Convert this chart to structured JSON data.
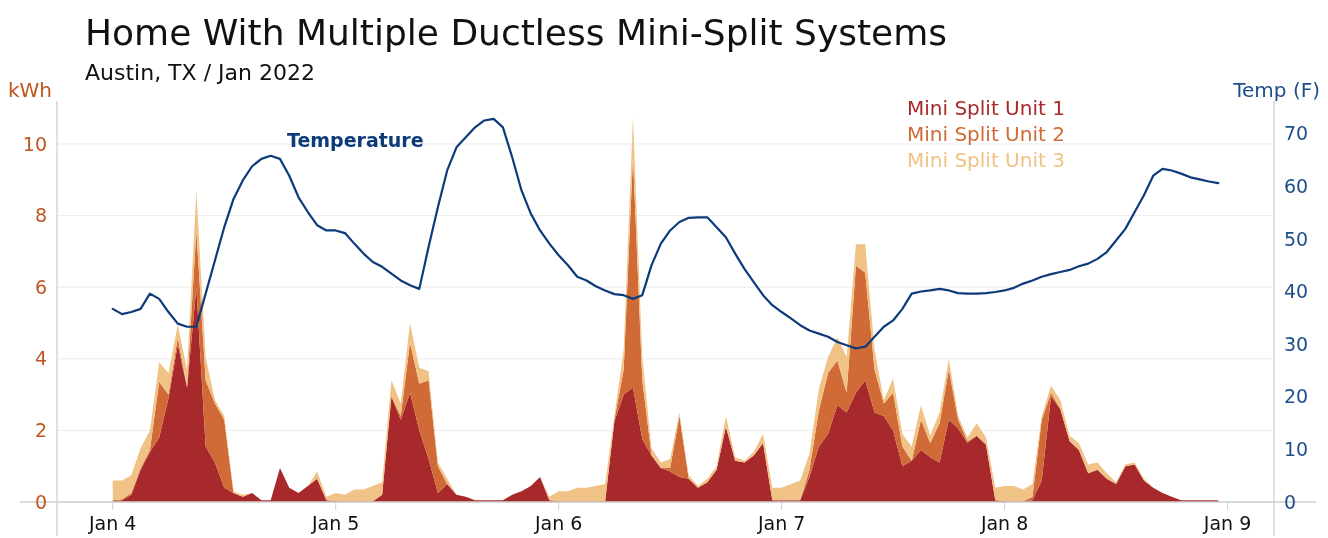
{
  "chart_data": {
    "type": "area",
    "stacked": true,
    "title": "Home With Multiple Ductless Mini-Split Systems",
    "subtitle": "Austin, TX / Jan 2022",
    "ylabel": "kWh",
    "y2label": "Temp (F)",
    "x": [
      "2022-01-04T00:00",
      "2022-01-04T01:00",
      "2022-01-04T02:00",
      "2022-01-04T03:00",
      "2022-01-04T04:00",
      "2022-01-04T05:00",
      "2022-01-04T06:00",
      "2022-01-04T07:00",
      "2022-01-04T08:00",
      "2022-01-04T09:00",
      "2022-01-04T10:00",
      "2022-01-04T11:00",
      "2022-01-04T12:00",
      "2022-01-04T13:00",
      "2022-01-04T14:00",
      "2022-01-04T15:00",
      "2022-01-04T16:00",
      "2022-01-04T17:00",
      "2022-01-04T18:00",
      "2022-01-04T19:00",
      "2022-01-04T20:00",
      "2022-01-04T21:00",
      "2022-01-04T22:00",
      "2022-01-04T23:00",
      "2022-01-05T00:00",
      "2022-01-05T01:00",
      "2022-01-05T02:00",
      "2022-01-05T03:00",
      "2022-01-05T04:00",
      "2022-01-05T05:00",
      "2022-01-05T06:00",
      "2022-01-05T07:00",
      "2022-01-05T08:00",
      "2022-01-05T09:00",
      "2022-01-05T10:00",
      "2022-01-05T11:00",
      "2022-01-05T12:00",
      "2022-01-05T13:00",
      "2022-01-05T14:00",
      "2022-01-05T15:00",
      "2022-01-05T16:00",
      "2022-01-05T17:00",
      "2022-01-05T18:00",
      "2022-01-05T19:00",
      "2022-01-05T20:00",
      "2022-01-05T21:00",
      "2022-01-05T22:00",
      "2022-01-05T23:00",
      "2022-01-06T00:00",
      "2022-01-06T01:00",
      "2022-01-06T02:00",
      "2022-01-06T03:00",
      "2022-01-06T04:00",
      "2022-01-06T05:00",
      "2022-01-06T06:00",
      "2022-01-06T07:00",
      "2022-01-06T08:00",
      "2022-01-06T09:00",
      "2022-01-06T10:00",
      "2022-01-06T11:00",
      "2022-01-06T12:00",
      "2022-01-06T13:00",
      "2022-01-06T14:00",
      "2022-01-06T15:00",
      "2022-01-06T16:00",
      "2022-01-06T17:00",
      "2022-01-06T18:00",
      "2022-01-06T19:00",
      "2022-01-06T20:00",
      "2022-01-06T21:00",
      "2022-01-06T22:00",
      "2022-01-06T23:00",
      "2022-01-07T00:00",
      "2022-01-07T01:00",
      "2022-01-07T02:00",
      "2022-01-07T03:00",
      "2022-01-07T04:00",
      "2022-01-07T05:00",
      "2022-01-07T06:00",
      "2022-01-07T07:00",
      "2022-01-07T08:00",
      "2022-01-07T09:00",
      "2022-01-07T10:00",
      "2022-01-07T11:00",
      "2022-01-07T12:00",
      "2022-01-07T13:00",
      "2022-01-07T14:00",
      "2022-01-07T15:00",
      "2022-01-07T16:00",
      "2022-01-07T17:00",
      "2022-01-07T18:00",
      "2022-01-07T19:00",
      "2022-01-07T20:00",
      "2022-01-07T21:00",
      "2022-01-07T22:00",
      "2022-01-07T23:00",
      "2022-01-08T00:00",
      "2022-01-08T01:00",
      "2022-01-08T02:00",
      "2022-01-08T03:00",
      "2022-01-08T04:00",
      "2022-01-08T05:00",
      "2022-01-08T06:00",
      "2022-01-08T07:00",
      "2022-01-08T08:00",
      "2022-01-08T09:00",
      "2022-01-08T10:00",
      "2022-01-08T11:00",
      "2022-01-08T12:00",
      "2022-01-08T13:00",
      "2022-01-08T14:00",
      "2022-01-08T15:00",
      "2022-01-08T16:00",
      "2022-01-08T17:00",
      "2022-01-08T18:00",
      "2022-01-08T19:00",
      "2022-01-08T20:00",
      "2022-01-08T21:00",
      "2022-01-08T22:00",
      "2022-01-08T23:00"
    ],
    "series": [
      {
        "name": "Mini Split Unit 1",
        "color": "#a8292b",
        "values": [
          0.02,
          0.05,
          0.2,
          0.9,
          1.4,
          1.8,
          2.9,
          4.4,
          3.2,
          6.0,
          1.55,
          1.1,
          0.4,
          0.25,
          0.15,
          0.25,
          0.05,
          0.05,
          0.95,
          0.4,
          0.25,
          0.45,
          0.65,
          0.05,
          0.02,
          0.02,
          0.02,
          0.02,
          0.02,
          0.2,
          2.95,
          2.3,
          3.05,
          2.0,
          1.2,
          0.25,
          0.5,
          0.2,
          0.15,
          0.05,
          0.05,
          0.05,
          0.05,
          0.2,
          0.3,
          0.45,
          0.7,
          0.05,
          0.02,
          0.02,
          0.02,
          0.02,
          0.02,
          0.02,
          2.25,
          3.0,
          3.2,
          1.75,
          1.3,
          0.95,
          0.85,
          0.7,
          0.65,
          0.4,
          0.55,
          0.9,
          2.1,
          1.15,
          1.1,
          1.3,
          1.65,
          0.05,
          0.05,
          0.05,
          0.05,
          0.7,
          1.55,
          1.9,
          2.7,
          2.5,
          3.05,
          3.4,
          2.5,
          2.4,
          2.0,
          1.0,
          1.15,
          1.45,
          1.25,
          1.1,
          2.3,
          2.05,
          1.65,
          1.85,
          1.6,
          0.05,
          0.02,
          0.02,
          0.02,
          0.05,
          0.6,
          2.95,
          2.6,
          1.7,
          1.45,
          0.8,
          0.9,
          0.65,
          0.5,
          1.0,
          1.05,
          0.6,
          0.4,
          0.25,
          0.15,
          0.05,
          0.05,
          0.05,
          0.05,
          0.05
        ]
      },
      {
        "name": "Mini Split Unit 2",
        "color": "#d06a36",
        "values": [
          0.03,
          0.03,
          0.05,
          0.05,
          0.05,
          1.55,
          0.1,
          0.2,
          0,
          1.6,
          1.85,
          1.65,
          1.9,
          0,
          0,
          0,
          0,
          0,
          0,
          0,
          0,
          0,
          0,
          0,
          0,
          0,
          0,
          0,
          0,
          0,
          0,
          0.1,
          1.4,
          1.3,
          2.2,
          0.75,
          0,
          0,
          0,
          0,
          0,
          0,
          0,
          0,
          0,
          0,
          0,
          0,
          0,
          0,
          0,
          0,
          0,
          0,
          0.05,
          0.7,
          6.45,
          1.65,
          0,
          0,
          0.1,
          1.7,
          0,
          0,
          0,
          0,
          0,
          0,
          0,
          0,
          0,
          0,
          0,
          0,
          0,
          0.2,
          1.0,
          1.7,
          1.25,
          0.55,
          3.55,
          3.0,
          1.2,
          0.35,
          1.05,
          0.55,
          0,
          0.85,
          0.4,
          1.1,
          1.4,
          0.25,
          0.05,
          0,
          0,
          0,
          0,
          0,
          0,
          0.1,
          1.7,
          0.1,
          0,
          0,
          0,
          0,
          0,
          0,
          0,
          0,
          0,
          0,
          0,
          0,
          0,
          0,
          0,
          0,
          0,
          0
        ]
      },
      {
        "name": "Mini Split Unit 3",
        "color": "#f0c285",
        "values": [
          0.55,
          0.52,
          0.5,
          0.55,
          0.55,
          0.55,
          0.6,
          0.35,
          0.5,
          1.1,
          0.65,
          0.1,
          0.1,
          0.05,
          0.05,
          0,
          0,
          0,
          0,
          0,
          0,
          0,
          0.2,
          0.1,
          0.23,
          0.18,
          0.33,
          0.33,
          0.43,
          0.35,
          0.45,
          0.35,
          0.55,
          0.45,
          0.25,
          0.1,
          0.15,
          0,
          0,
          0,
          0,
          0,
          0,
          0,
          0,
          0,
          0,
          0.1,
          0.28,
          0.28,
          0.38,
          0.38,
          0.43,
          0.48,
          0.1,
          0.55,
          1.1,
          0.65,
          0.2,
          0.15,
          0.25,
          0.1,
          0.1,
          0.05,
          0.1,
          0.1,
          0.3,
          0.1,
          0.05,
          0.1,
          0.25,
          0.35,
          0.35,
          0.45,
          0.55,
          0.45,
          0.6,
          0.45,
          0.65,
          1.0,
          0.6,
          0.8,
          0.55,
          0.1,
          0.4,
          0.35,
          0.4,
          0.4,
          0.2,
          0.3,
          0.3,
          0.1,
          0.1,
          0.35,
          0.2,
          0.35,
          0.43,
          0.43,
          0.33,
          0.35,
          0.1,
          0.2,
          0.25,
          0.15,
          0.2,
          0.25,
          0.2,
          0.15,
          0.05,
          0.05,
          0.05,
          0.05,
          0,
          0,
          0,
          0,
          0,
          0,
          0,
          0
        ]
      },
      {
        "name": "Temperature",
        "type": "line",
        "axis": "y2",
        "color": "#0d3b7a",
        "values": [
          36.7,
          35.7,
          36.1,
          36.7,
          39.6,
          38.6,
          36.1,
          33.9,
          33.3,
          33.3,
          39.6,
          45.9,
          52.2,
          57.6,
          61.1,
          63.8,
          65.2,
          65.8,
          65.2,
          62.0,
          57.9,
          55.1,
          52.6,
          51.6,
          51.6,
          51.1,
          49.1,
          47.2,
          45.6,
          44.7,
          43.4,
          42.1,
          41.2,
          40.5,
          48.5,
          56.0,
          63.0,
          67.4,
          69.3,
          71.2,
          72.5,
          72.8,
          71.2,
          65.5,
          59.2,
          54.8,
          51.6,
          49.1,
          46.9,
          45.0,
          42.8,
          42.1,
          41.0,
          40.2,
          39.5,
          39.3,
          38.6,
          39.3,
          45.0,
          49.1,
          51.6,
          53.2,
          54.0,
          54.1,
          54.1,
          52.2,
          50.3,
          47.2,
          44.3,
          41.8,
          39.3,
          37.4,
          36.1,
          34.9,
          33.6,
          32.6,
          32.0,
          31.4,
          30.4,
          29.8,
          29.2,
          29.5,
          31.4,
          33.3,
          34.5,
          36.7,
          39.6,
          40.0,
          40.2,
          40.5,
          40.2,
          39.7,
          39.6,
          39.6,
          39.7,
          39.9,
          40.2,
          40.7,
          41.5,
          42.1,
          42.8,
          43.3,
          43.7,
          44.1,
          44.8,
          45.3,
          46.2,
          47.5,
          49.7,
          51.9,
          55.1,
          58.3,
          62.0,
          63.3,
          63.0,
          62.4,
          61.7,
          61.3,
          60.9,
          60.6
        ]
      }
    ],
    "xlim": [
      "2022-01-03T18:00",
      "2022-01-09T05:00"
    ],
    "xticks": [
      {
        "value": "2022-01-04",
        "label": "Jan 4"
      },
      {
        "value": "2022-01-05",
        "label": "Jan 5"
      },
      {
        "value": "2022-01-06",
        "label": "Jan 6"
      },
      {
        "value": "2022-01-07",
        "label": "Jan 7"
      },
      {
        "value": "2022-01-08",
        "label": "Jan 8"
      },
      {
        "value": "2022-01-09",
        "label": "Jan 9"
      }
    ],
    "ylim": [
      0,
      11.2
    ],
    "yticks": [
      0,
      2,
      4,
      6,
      8,
      10
    ],
    "y2lim": [
      0,
      76.2
    ],
    "y2ticks": [
      0,
      10,
      20,
      30,
      40,
      50,
      60,
      70
    ],
    "grid": "y",
    "legend": "top right"
  }
}
